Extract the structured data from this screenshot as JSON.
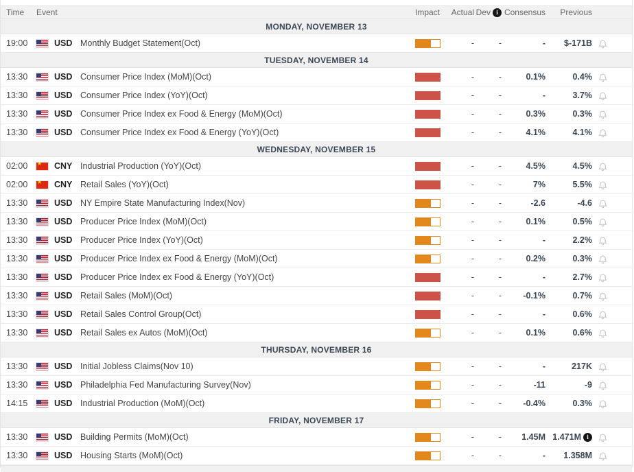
{
  "header": {
    "time": "Time",
    "event": "Event",
    "impact": "Impact",
    "actual": "Actual",
    "dev": "Dev",
    "consensus": "Consensus",
    "previous": "Previous",
    "dev_info_icon": "i"
  },
  "colors": {
    "impact_high": "#cd5349",
    "impact_medium": "#e2871b",
    "separator_bg": "#f0f0f0",
    "value_text": "#3a4655",
    "bell": "#cccccc"
  },
  "icons": {
    "info": "info-icon",
    "bell": "bell-icon",
    "us_flag": "us-flag-icon",
    "cn_flag": "cn-flag-icon"
  },
  "rows": [
    {
      "type": "separator",
      "label": "MONDAY, NOVEMBER 13"
    },
    {
      "type": "event",
      "time": "19:00",
      "country": "US",
      "currency": "USD",
      "event": "Monthly Budget Statement(Oct)",
      "impact": "medium",
      "actual": "-",
      "dev": "-",
      "consensus": "-",
      "previous": "$-171B",
      "previous_info": false
    },
    {
      "type": "separator",
      "label": "TUESDAY, NOVEMBER 14"
    },
    {
      "type": "event",
      "time": "13:30",
      "country": "US",
      "currency": "USD",
      "event": "Consumer Price Index (MoM)(Oct)",
      "impact": "high",
      "actual": "-",
      "dev": "-",
      "consensus": "0.1%",
      "previous": "0.4%",
      "previous_info": false
    },
    {
      "type": "event",
      "time": "13:30",
      "country": "US",
      "currency": "USD",
      "event": "Consumer Price Index (YoY)(Oct)",
      "impact": "high",
      "actual": "-",
      "dev": "-",
      "consensus": "-",
      "previous": "3.7%",
      "previous_info": false
    },
    {
      "type": "event",
      "time": "13:30",
      "country": "US",
      "currency": "USD",
      "event": "Consumer Price Index ex Food & Energy (MoM)(Oct)",
      "impact": "high",
      "actual": "-",
      "dev": "-",
      "consensus": "0.3%",
      "previous": "0.3%",
      "previous_info": false
    },
    {
      "type": "event",
      "time": "13:30",
      "country": "US",
      "currency": "USD",
      "event": "Consumer Price Index ex Food & Energy (YoY)(Oct)",
      "impact": "high",
      "actual": "-",
      "dev": "-",
      "consensus": "4.1%",
      "previous": "4.1%",
      "previous_info": false
    },
    {
      "type": "separator",
      "label": "WEDNESDAY, NOVEMBER 15"
    },
    {
      "type": "event",
      "time": "02:00",
      "country": "CN",
      "currency": "CNY",
      "event": "Industrial Production (YoY)(Oct)",
      "impact": "high",
      "actual": "-",
      "dev": "-",
      "consensus": "4.5%",
      "previous": "4.5%",
      "previous_info": false
    },
    {
      "type": "event",
      "time": "02:00",
      "country": "CN",
      "currency": "CNY",
      "event": "Retail Sales (YoY)(Oct)",
      "impact": "high",
      "actual": "-",
      "dev": "-",
      "consensus": "7%",
      "previous": "5.5%",
      "previous_info": false
    },
    {
      "type": "event",
      "time": "13:30",
      "country": "US",
      "currency": "USD",
      "event": "NY Empire State Manufacturing Index(Nov)",
      "impact": "medium",
      "actual": "-",
      "dev": "-",
      "consensus": "-2.6",
      "previous": "-4.6",
      "previous_info": false
    },
    {
      "type": "event",
      "time": "13:30",
      "country": "US",
      "currency": "USD",
      "event": "Producer Price Index (MoM)(Oct)",
      "impact": "medium",
      "actual": "-",
      "dev": "-",
      "consensus": "0.1%",
      "previous": "0.5%",
      "previous_info": false
    },
    {
      "type": "event",
      "time": "13:30",
      "country": "US",
      "currency": "USD",
      "event": "Producer Price Index (YoY)(Oct)",
      "impact": "medium",
      "actual": "-",
      "dev": "-",
      "consensus": "-",
      "previous": "2.2%",
      "previous_info": false
    },
    {
      "type": "event",
      "time": "13:30",
      "country": "US",
      "currency": "USD",
      "event": "Producer Price Index ex Food & Energy (MoM)(Oct)",
      "impact": "medium",
      "actual": "-",
      "dev": "-",
      "consensus": "0.2%",
      "previous": "0.3%",
      "previous_info": false
    },
    {
      "type": "event",
      "time": "13:30",
      "country": "US",
      "currency": "USD",
      "event": "Producer Price Index ex Food & Energy (YoY)(Oct)",
      "impact": "high",
      "actual": "-",
      "dev": "-",
      "consensus": "-",
      "previous": "2.7%",
      "previous_info": false
    },
    {
      "type": "event",
      "time": "13:30",
      "country": "US",
      "currency": "USD",
      "event": "Retail Sales (MoM)(Oct)",
      "impact": "high",
      "actual": "-",
      "dev": "-",
      "consensus": "-0.1%",
      "previous": "0.7%",
      "previous_info": false
    },
    {
      "type": "event",
      "time": "13:30",
      "country": "US",
      "currency": "USD",
      "event": "Retail Sales Control Group(Oct)",
      "impact": "high",
      "actual": "-",
      "dev": "-",
      "consensus": "-",
      "previous": "0.6%",
      "previous_info": false
    },
    {
      "type": "event",
      "time": "13:30",
      "country": "US",
      "currency": "USD",
      "event": "Retail Sales ex Autos (MoM)(Oct)",
      "impact": "medium",
      "actual": "-",
      "dev": "-",
      "consensus": "0.1%",
      "previous": "0.6%",
      "previous_info": false
    },
    {
      "type": "separator",
      "label": "THURSDAY, NOVEMBER 16"
    },
    {
      "type": "event",
      "time": "13:30",
      "country": "US",
      "currency": "USD",
      "event": "Initial Jobless Claims(Nov 10)",
      "impact": "medium",
      "actual": "-",
      "dev": "-",
      "consensus": "-",
      "previous": "217K",
      "previous_info": false
    },
    {
      "type": "event",
      "time": "13:30",
      "country": "US",
      "currency": "USD",
      "event": "Philadelphia Fed Manufacturing Survey(Nov)",
      "impact": "medium",
      "actual": "-",
      "dev": "-",
      "consensus": "-11",
      "previous": "-9",
      "previous_info": false
    },
    {
      "type": "event",
      "time": "14:15",
      "country": "US",
      "currency": "USD",
      "event": "Industrial Production (MoM)(Oct)",
      "impact": "medium",
      "actual": "-",
      "dev": "-",
      "consensus": "-0.4%",
      "previous": "0.3%",
      "previous_info": false
    },
    {
      "type": "separator",
      "label": "FRIDAY, NOVEMBER 17"
    },
    {
      "type": "event",
      "time": "13:30",
      "country": "US",
      "currency": "USD",
      "event": "Building Permits (MoM)(Oct)",
      "impact": "medium",
      "actual": "-",
      "dev": "-",
      "consensus": "1.45M",
      "previous": "1.471M",
      "previous_info": true
    },
    {
      "type": "event",
      "time": "13:30",
      "country": "US",
      "currency": "USD",
      "event": "Housing Starts (MoM)(Oct)",
      "impact": "medium",
      "actual": "-",
      "dev": "-",
      "consensus": "-",
      "previous": "1.358M",
      "previous_info": false
    }
  ]
}
